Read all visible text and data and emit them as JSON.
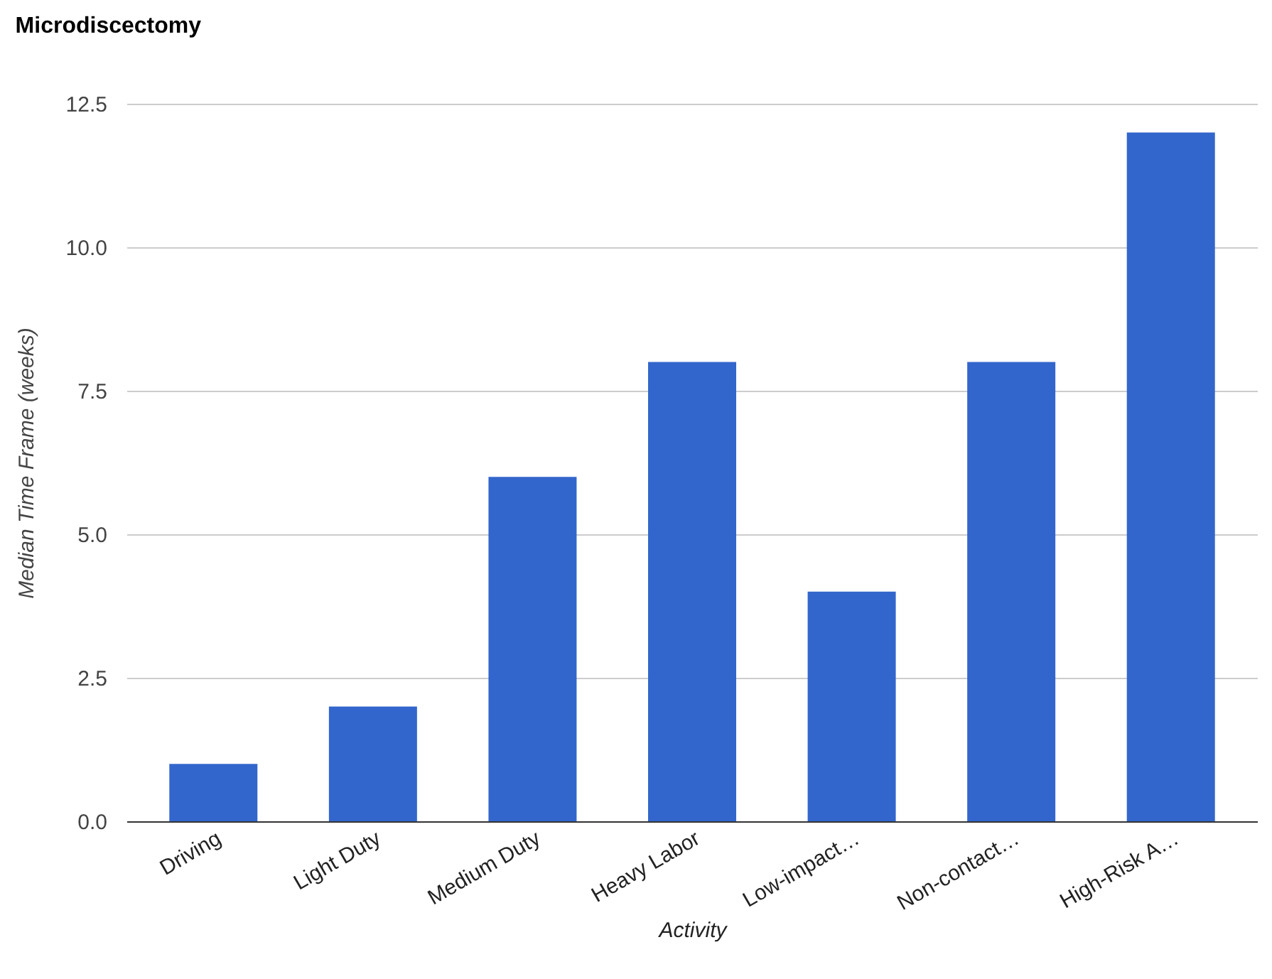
{
  "chart_data": {
    "type": "bar",
    "title": "Microdiscectomy",
    "xlabel": "Activity",
    "ylabel": "Median Time Frame (weeks)",
    "categories": [
      "Driving",
      "Light Duty",
      "Medium Duty",
      "Heavy Labor",
      "Low-impact…",
      "Non-contact…",
      "High-Risk A…"
    ],
    "values": [
      1,
      2,
      6,
      8,
      4,
      8,
      12
    ],
    "color": "#3366cc",
    "ylim": [
      0,
      12.5
    ],
    "yticks": [
      {
        "value": 0,
        "label": "0.0"
      },
      {
        "value": 2.5,
        "label": "2.5"
      },
      {
        "value": 5,
        "label": "5.0"
      },
      {
        "value": 7.5,
        "label": "7.5"
      },
      {
        "value": 10,
        "label": "10.0"
      },
      {
        "value": 12.5,
        "label": "12.5"
      }
    ],
    "grid": "y"
  }
}
